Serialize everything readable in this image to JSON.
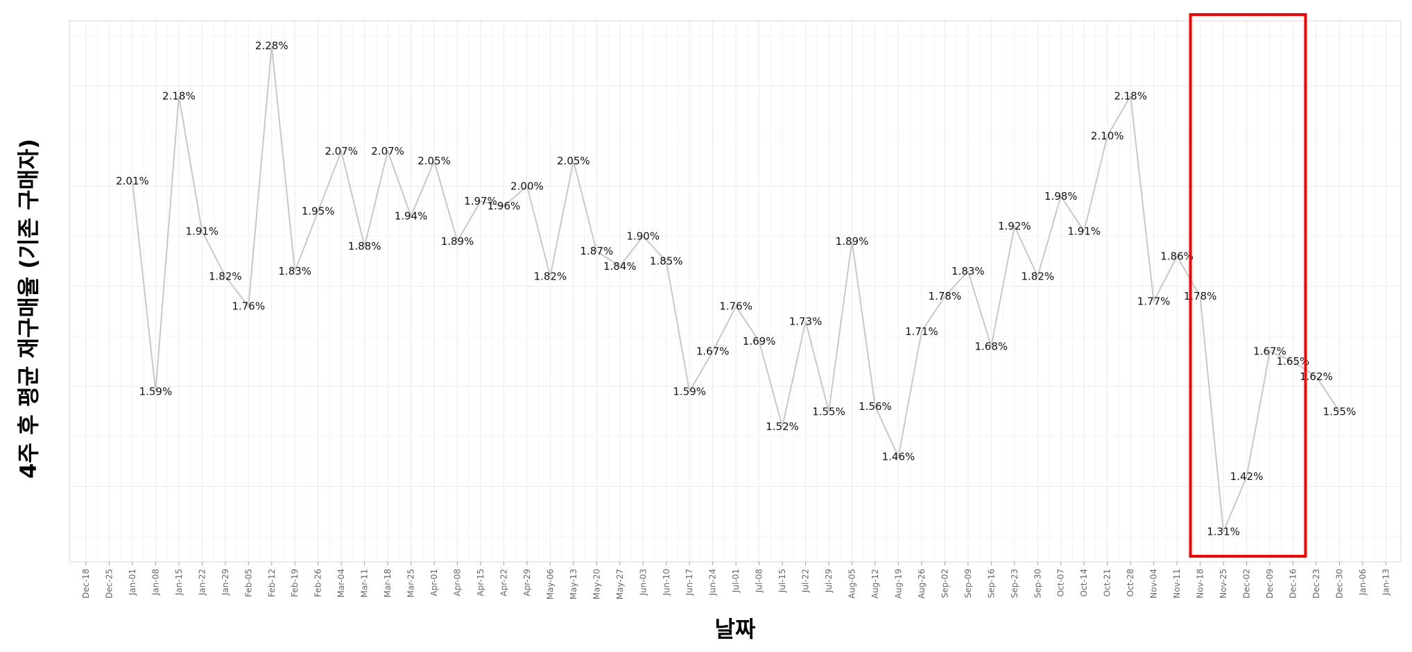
{
  "chart_data": {
    "type": "line",
    "title": "",
    "xlabel": "날짜",
    "ylabel": "4주 후 평균 재구매율 (기존 구매자)",
    "x_ticks": [
      "Dec-18",
      "Dec-25",
      "Jan-01",
      "Jan-08",
      "Jan-15",
      "Jan-22",
      "Jan-29",
      "Feb-05",
      "Feb-12",
      "Feb-19",
      "Feb-26",
      "Mar-04",
      "Mar-11",
      "Mar-18",
      "Mar-25",
      "Apr-01",
      "Apr-08",
      "Apr-15",
      "Apr-22",
      "Apr-29",
      "May-06",
      "May-13",
      "May-20",
      "May-27",
      "Jun-03",
      "Jun-10",
      "Jun-17",
      "Jun-24",
      "Jul-01",
      "Jul-08",
      "Jul-15",
      "Jul-22",
      "Jul-29",
      "Aug-05",
      "Aug-12",
      "Aug-19",
      "Aug-26",
      "Sep-02",
      "Sep-09",
      "Sep-16",
      "Sep-23",
      "Sep-30",
      "Oct-07",
      "Oct-14",
      "Oct-21",
      "Oct-28",
      "Nov-04",
      "Nov-11",
      "Nov-18",
      "Nov-25",
      "Dec-02",
      "Dec-09",
      "Dec-16",
      "Dec-23",
      "Dec-30",
      "Jan-06",
      "Jan-13"
    ],
    "x": [
      "Jan-01",
      "Jan-08",
      "Jan-15",
      "Jan-22",
      "Jan-29",
      "Feb-05",
      "Feb-12",
      "Feb-19",
      "Feb-26",
      "Mar-04",
      "Mar-11",
      "Mar-18",
      "Mar-25",
      "Apr-01",
      "Apr-08",
      "Apr-15",
      "Apr-22",
      "Apr-29",
      "May-06",
      "May-13",
      "May-20",
      "May-27",
      "Jun-03",
      "Jun-10",
      "Jun-17",
      "Jun-24",
      "Jul-01",
      "Jul-08",
      "Jul-15",
      "Jul-22",
      "Jul-29",
      "Aug-05",
      "Aug-12",
      "Aug-19",
      "Aug-26",
      "Sep-02",
      "Sep-09",
      "Sep-16",
      "Sep-23",
      "Sep-30",
      "Oct-07",
      "Oct-14",
      "Oct-21",
      "Oct-28",
      "Nov-04",
      "Nov-11",
      "Nov-18",
      "Nov-25",
      "Dec-02",
      "Dec-09",
      "Dec-16",
      "Dec-23",
      "Dec-30"
    ],
    "values": [
      2.01,
      1.59,
      2.18,
      1.91,
      1.82,
      1.76,
      2.28,
      1.83,
      1.95,
      2.07,
      1.88,
      2.07,
      1.94,
      2.05,
      1.89,
      1.97,
      1.96,
      2.0,
      1.82,
      2.05,
      1.87,
      1.84,
      1.9,
      1.85,
      1.59,
      1.67,
      1.76,
      1.69,
      1.52,
      1.73,
      1.55,
      1.89,
      1.56,
      1.46,
      1.71,
      1.78,
      1.83,
      1.68,
      1.92,
      1.82,
      1.98,
      1.91,
      2.1,
      2.18,
      1.77,
      1.86,
      1.78,
      1.31,
      1.42,
      1.67,
      1.65,
      1.62,
      1.55
    ],
    "labels": [
      "2.01%",
      "1.59%",
      "2.18%",
      "1.91%",
      "1.82%",
      "1.76%",
      "2.28%",
      "1.83%",
      "1.95%",
      "2.07%",
      "1.88%",
      "2.07%",
      "1.94%",
      "2.05%",
      "1.89%",
      "1.97%",
      "1.96%",
      "2.00%",
      "1.82%",
      "2.05%",
      "1.87%",
      "1.84%",
      "1.90%",
      "1.85%",
      "1.59%",
      "1.67%",
      "1.76%",
      "1.69%",
      "1.52%",
      "1.73%",
      "1.55%",
      "1.89%",
      "1.56%",
      "1.46%",
      "1.71%",
      "1.78%",
      "1.83%",
      "1.68%",
      "1.92%",
      "1.82%",
      "1.98%",
      "1.91%",
      "2.10%",
      "2.18%",
      "1.77%",
      "1.86%",
      "1.78%",
      "1.31%",
      "1.42%",
      "1.67%",
      "1.65%",
      "1.62%",
      "1.55%"
    ],
    "unit": "%",
    "ylim": [
      1.25,
      2.33
    ],
    "grid": true,
    "line_color": "#c8c8c8",
    "grid_color": "#ebebeb",
    "highlight": {
      "from": "Nov-18",
      "to": "Dec-16",
      "color": "#ff0000"
    }
  }
}
